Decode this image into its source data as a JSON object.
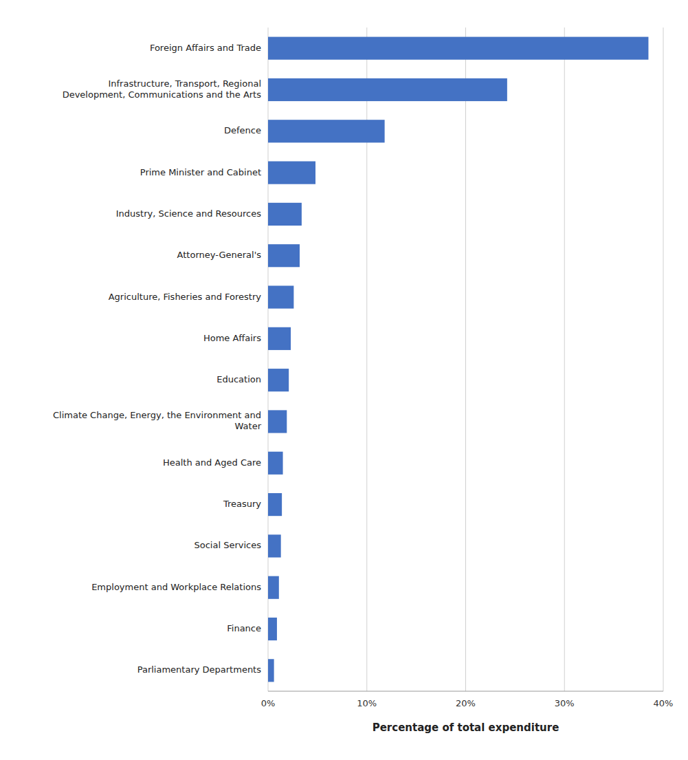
{
  "chart_data": {
    "type": "bar",
    "orientation": "horizontal",
    "categories": [
      "Parliamentary Departments",
      "Finance",
      "Employment and Workplace Relations",
      "Social Services",
      "Treasury",
      "Health and Aged Care",
      "Climate Change, Energy, the Environment and\nWater",
      "Education",
      "Home Affairs",
      "Agriculture, Fisheries and Forestry",
      "Attorney-General's",
      "Industry, Science and Resources",
      "Prime Minister and Cabinet",
      "Defence",
      "Infrastructure, Transport, Regional\nDevelopment, Communications and the Arts",
      "Foreign Affairs and Trade"
    ],
    "values": [
      0.6,
      0.9,
      1.1,
      1.3,
      1.4,
      1.5,
      1.9,
      2.1,
      2.3,
      2.6,
      3.2,
      3.4,
      4.8,
      11.8,
      24.2,
      38.5
    ],
    "color": "#4472C4",
    "xlabel": "Percentage of total expenditure",
    "xlim": [
      0,
      40
    ],
    "xticks": [
      {
        "value": 0,
        "label": "0%"
      },
      {
        "value": 10,
        "label": "10%"
      },
      {
        "value": 20,
        "label": "20%"
      },
      {
        "value": 30,
        "label": "30%"
      },
      {
        "value": 40,
        "label": "40%"
      }
    ],
    "grid": true
  }
}
